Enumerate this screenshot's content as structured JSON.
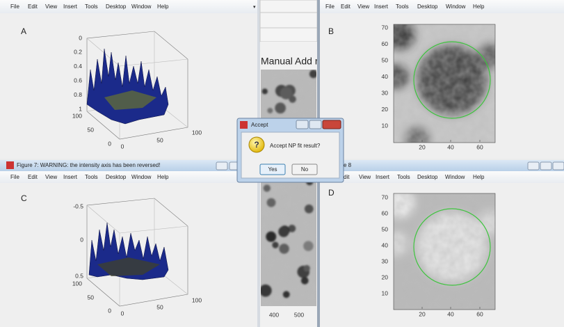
{
  "windows": {
    "top_left": {
      "menu": [
        "File",
        "Edit",
        "View",
        "Insert",
        "Tools",
        "Desktop",
        "Window",
        "Help"
      ],
      "label": "A",
      "axes": {
        "z": [
          0,
          0.2,
          0.4,
          0.6,
          0.8,
          1
        ],
        "y": [
          100,
          50,
          0
        ],
        "x": [
          0,
          50,
          100
        ]
      }
    },
    "top_right": {
      "menu": [
        "File",
        "Edit",
        "View",
        "Insert",
        "Tools",
        "Desktop",
        "Window",
        "Help"
      ],
      "label": "B",
      "axes": {
        "y": [
          70,
          60,
          50,
          40,
          30,
          20,
          10
        ],
        "x": [
          20,
          40,
          60
        ]
      }
    },
    "bottom_left": {
      "title": "Figure 7: WARNING: the intensity axis has been reversed!",
      "menu": [
        "File",
        "Edit",
        "View",
        "Insert",
        "Tools",
        "Desktop",
        "Window",
        "Help"
      ],
      "label": "C",
      "axes": {
        "z": [
          -0.5,
          0,
          0.5
        ],
        "y": [
          100,
          50,
          0
        ],
        "x": [
          0,
          50,
          100
        ]
      }
    },
    "bottom_right": {
      "title": "e 8",
      "menu": [
        "dit",
        "View",
        "Insert",
        "Tools",
        "Desktop",
        "Window",
        "Help"
      ],
      "label": "D",
      "axes": {
        "y": [
          70,
          60,
          50,
          40,
          30,
          20,
          10
        ],
        "x": [
          20,
          40,
          60
        ]
      }
    },
    "middle": {
      "heading": "Manual Add r",
      "x_ticks": [
        400,
        500
      ]
    }
  },
  "dialog": {
    "title": "Accept",
    "message": "Accept NP fit result?",
    "buttons": [
      "Yes",
      "No"
    ]
  }
}
